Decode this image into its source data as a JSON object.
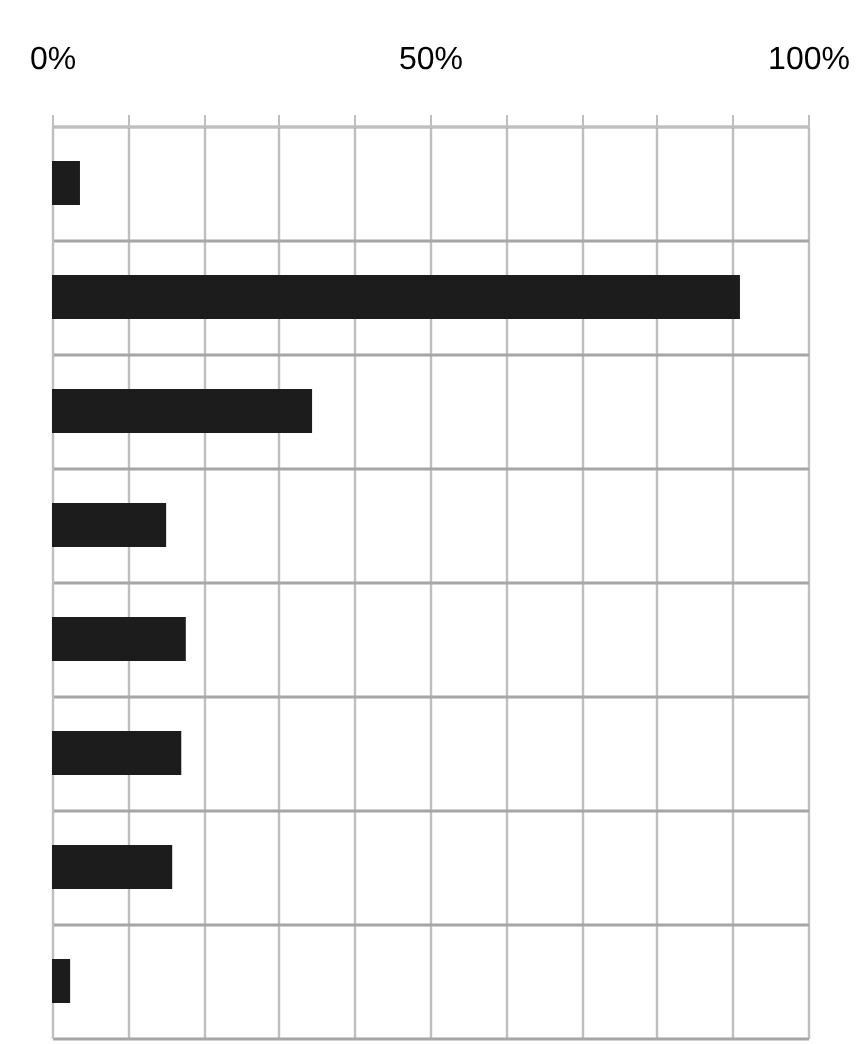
{
  "chart_data": {
    "type": "bar",
    "orientation": "horizontal",
    "tick_labels": "x",
    "grid": true,
    "categories": [
      null,
      null,
      null,
      null,
      null,
      null,
      null,
      null
    ],
    "values": [
      3.7,
      91,
      34.4,
      15.1,
      17.7,
      17.1,
      15.9,
      2.4
    ],
    "color": "#1c1c1c",
    "xlim": [
      0,
      100
    ],
    "xticks": [
      {
        "value": 0,
        "label": "0%"
      },
      {
        "value": 10,
        "label": null
      },
      {
        "value": 20,
        "label": null
      },
      {
        "value": 30,
        "label": null
      },
      {
        "value": 40,
        "label": null
      },
      {
        "value": 50,
        "label": "50%"
      },
      {
        "value": 60,
        "label": null
      },
      {
        "value": 70,
        "label": null
      },
      {
        "value": 80,
        "label": null
      },
      {
        "value": 90,
        "label": null
      },
      {
        "value": 100,
        "label": "100%"
      }
    ]
  }
}
